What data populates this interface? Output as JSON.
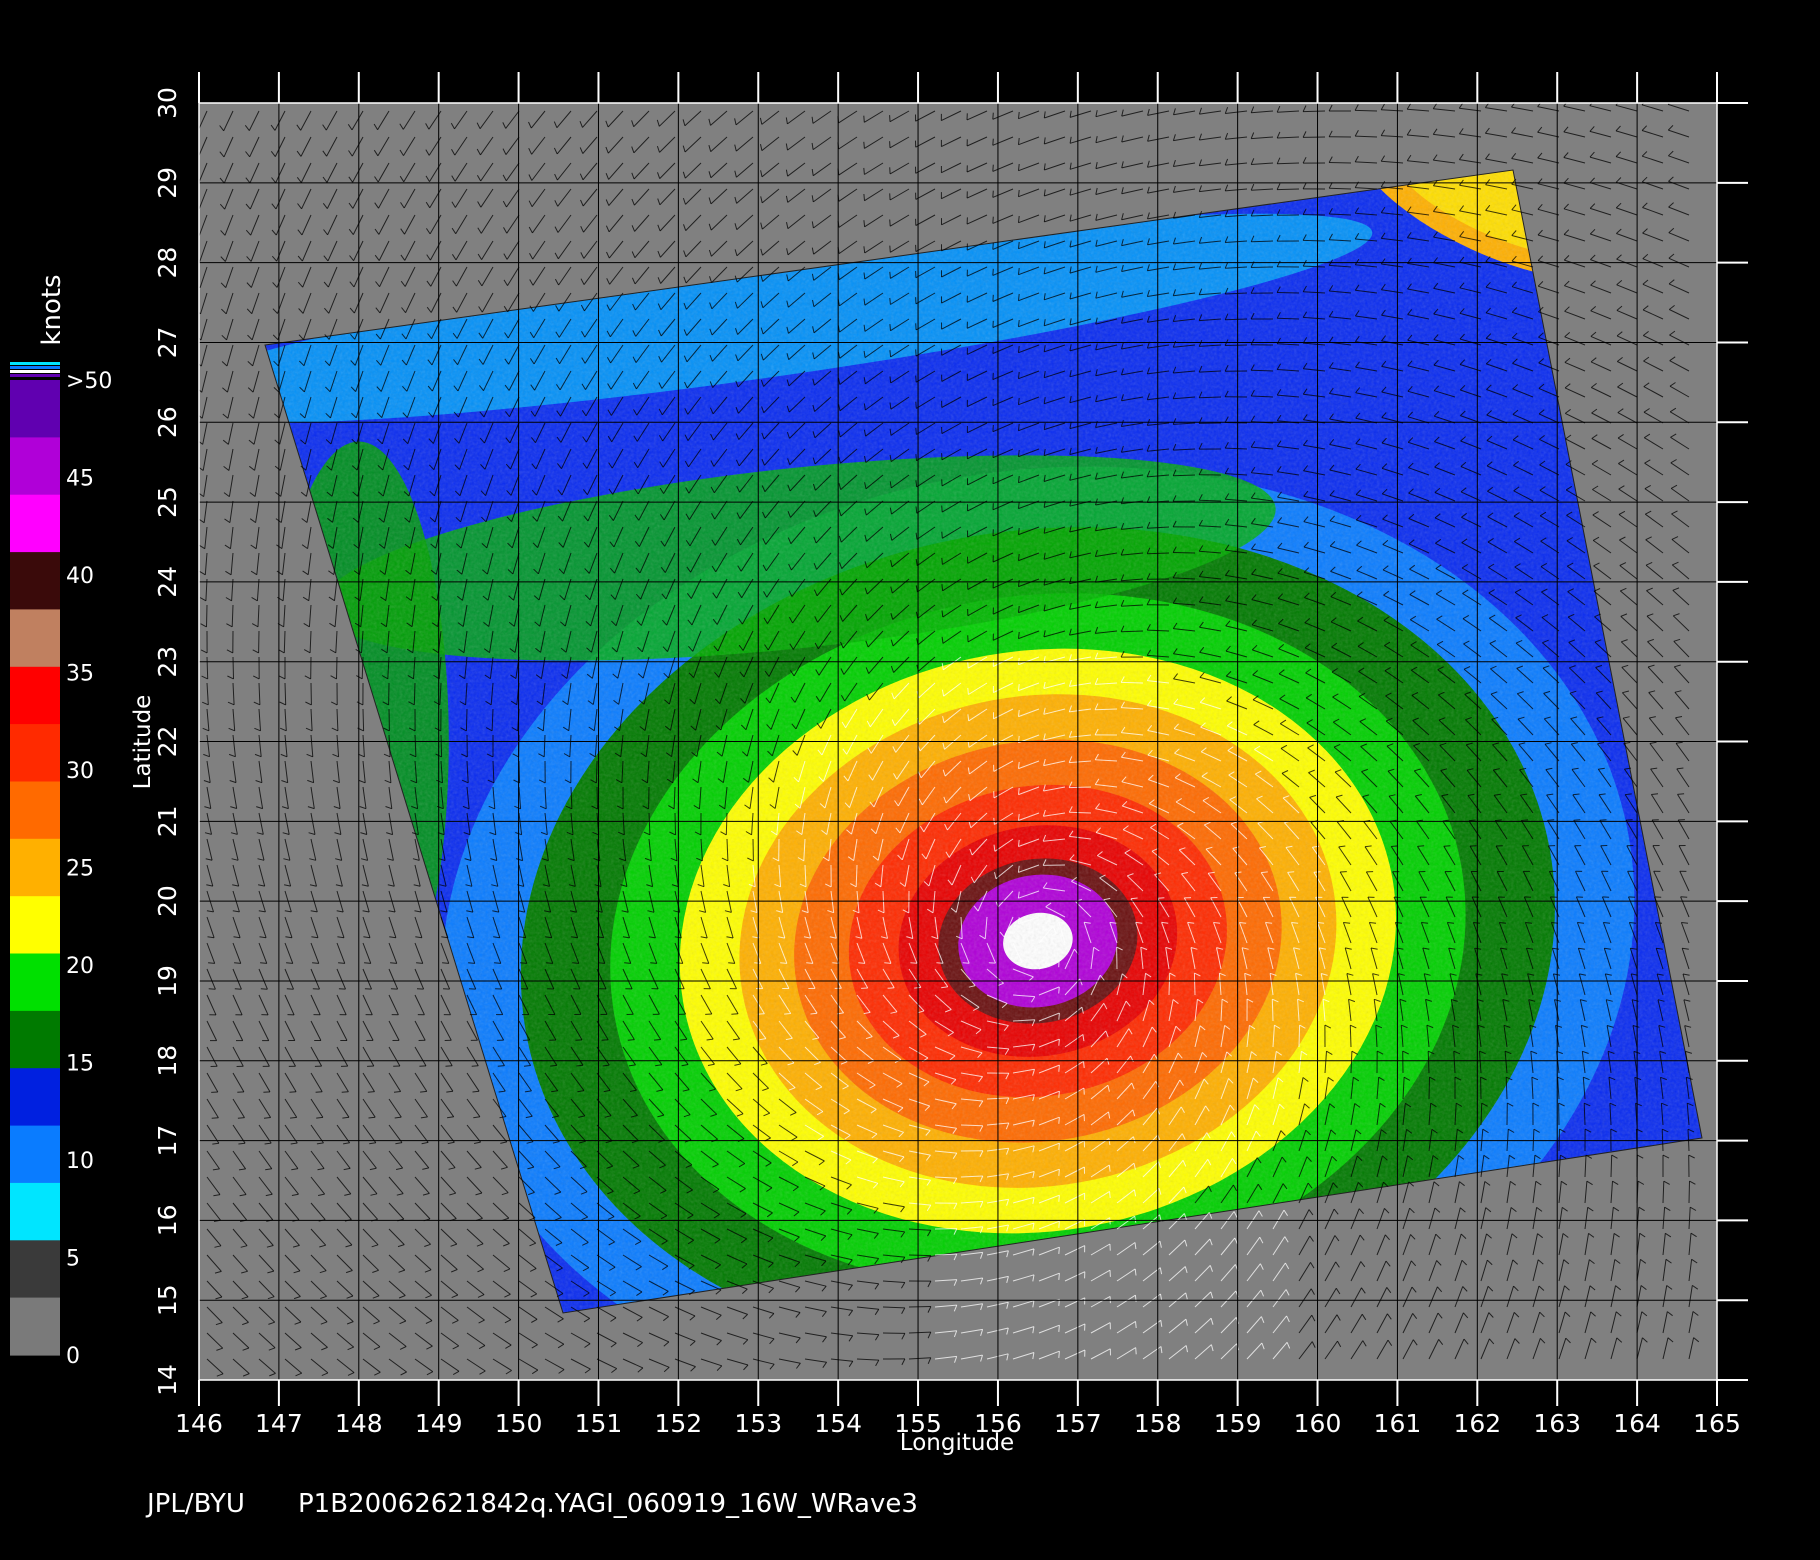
{
  "colorbar": {
    "unit": "knots",
    "ticks": [
      "0",
      "5",
      "10",
      "15",
      "20",
      "25",
      "30",
      "35",
      "40",
      "45",
      ">50"
    ],
    "colors": [
      "#7a7a7a",
      "#3a3a3a",
      "#00e5ff",
      "#0a7cff",
      "#0020e0",
      "#007a00",
      "#00e000",
      "#ffff00",
      "#ffb000",
      "#ff6a00",
      "#ff2a00",
      "#ff0000",
      "#c08060",
      "#3a0a0a",
      "#ff00ff",
      "#b000d8",
      "#6000b0"
    ]
  },
  "map": {
    "longitude_ticks": [
      "146",
      "147",
      "148",
      "149",
      "150",
      "151",
      "152",
      "153",
      "154",
      "155",
      "156",
      "157",
      "158",
      "159",
      "160",
      "161",
      "162",
      "163",
      "164",
      "165"
    ],
    "latitude_ticks": [
      "14",
      "15",
      "16",
      "17",
      "18",
      "19",
      "20",
      "21",
      "22",
      "23",
      "24",
      "25",
      "26",
      "27",
      "28",
      "29",
      "30"
    ],
    "xlabel": "Longitude",
    "ylabel": "Latitude",
    "background_color": "#808080",
    "storm_center": [
      156.5,
      19.5
    ]
  },
  "footer": {
    "credit": "JPL/BYU",
    "filename": "P1B20062621842q.YAGI_060919_16W_WRave3"
  }
}
